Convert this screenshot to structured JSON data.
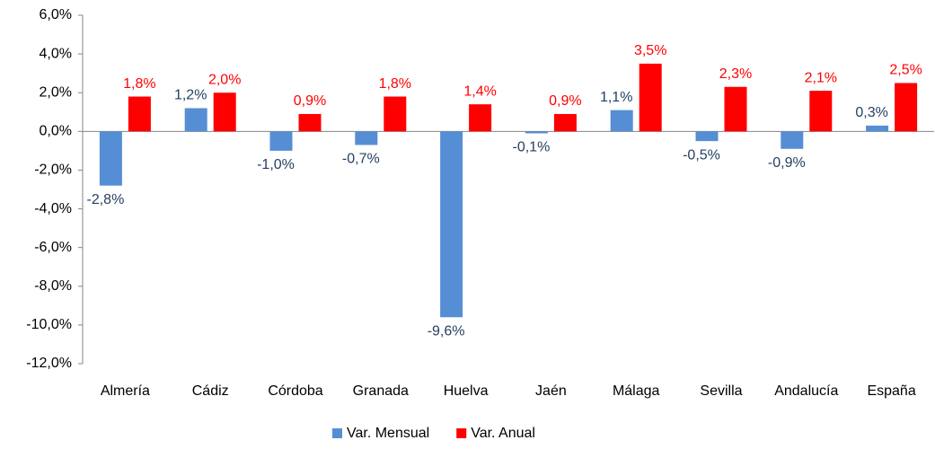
{
  "chart_data": {
    "type": "bar",
    "categories": [
      "Almería",
      "Cádiz",
      "Córdoba",
      "Granada",
      "Huelva",
      "Jaén",
      "Málaga",
      "Sevilla",
      "Andalucía",
      "España"
    ],
    "series": [
      {
        "name": "Var. Mensual",
        "color": "#558ed5",
        "label_color": "#254061",
        "values": [
          -2.8,
          1.2,
          -1.0,
          -0.7,
          -9.6,
          -0.1,
          1.1,
          -0.5,
          -0.9,
          0.3
        ],
        "value_labels": [
          "-2,8%",
          "1,2%",
          "-1,0%",
          "-0,7%",
          "-9,6%",
          "-0,1%",
          "1,1%",
          "-0,5%",
          "-0,9%",
          "0,3%"
        ]
      },
      {
        "name": "Var. Anual",
        "color": "#ff0000",
        "label_color": "#ff0000",
        "values": [
          1.8,
          2.0,
          0.9,
          1.8,
          1.4,
          0.9,
          3.5,
          2.3,
          2.1,
          2.5
        ],
        "value_labels": [
          "1,8%",
          "2,0%",
          "0,9%",
          "1,8%",
          "1,4%",
          "0,9%",
          "3,5%",
          "2,3%",
          "2,1%",
          "2,5%"
        ]
      }
    ],
    "ylim": [
      -12,
      6
    ],
    "yticks": [
      {
        "value": -12,
        "label": "-12,0%"
      },
      {
        "value": -10,
        "label": "-10,0%"
      },
      {
        "value": -8,
        "label": "-8,0%"
      },
      {
        "value": -6,
        "label": "-6,0%"
      },
      {
        "value": -4,
        "label": "-4,0%"
      },
      {
        "value": -2,
        "label": "-2,0%"
      },
      {
        "value": 0,
        "label": "0,0%"
      },
      {
        "value": 2,
        "label": "2,0%"
      },
      {
        "value": 4,
        "label": "4,0%"
      },
      {
        "value": 6,
        "label": "6,0%"
      }
    ],
    "grid": false,
    "legend": "bottom"
  }
}
